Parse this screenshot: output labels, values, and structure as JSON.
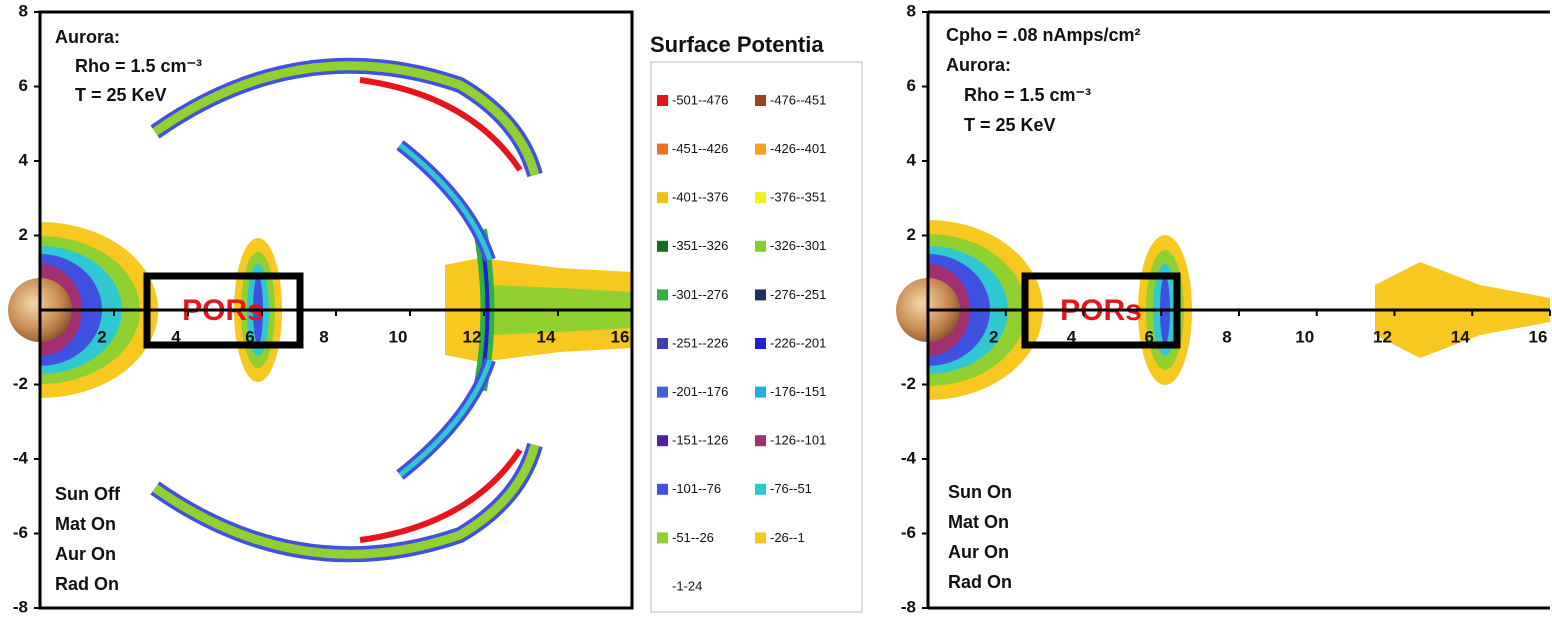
{
  "chart_data": [
    {
      "type": "contour",
      "xlim": [
        0,
        16
      ],
      "ylim": [
        -8,
        8
      ],
      "xticks": [
        2,
        4,
        6,
        8,
        10,
        12,
        14,
        16
      ],
      "yticks": [
        -8,
        -6,
        -4,
        -2,
        2,
        4,
        6,
        8
      ],
      "annotations": [
        "Aurora:",
        "Rho = 1.5 cm⁻³",
        "T = 25 KeV"
      ],
      "settings": [
        "Sun Off",
        "Mat On",
        "Aur On",
        "Rad On"
      ],
      "box_label": "PORs",
      "legend_title": "Surface Potentia",
      "legend": [
        {
          "name": "-501--476",
          "color": "#e8141c"
        },
        {
          "name": "-476--451",
          "color": "#a0401c"
        },
        {
          "name": "-451--426",
          "color": "#f07020"
        },
        {
          "name": "-426--401",
          "color": "#f8a020"
        },
        {
          "name": "-401--376",
          "color": "#f0c020"
        },
        {
          "name": "-376--351",
          "color": "#f0f020"
        },
        {
          "name": "-351--326",
          "color": "#1a6a20"
        },
        {
          "name": "-326--301",
          "color": "#80d030"
        },
        {
          "name": "-301--276",
          "color": "#30b040"
        },
        {
          "name": "-276--251",
          "color": "#203060"
        },
        {
          "name": "-251--226",
          "color": "#4040b0"
        },
        {
          "name": "-226--201",
          "color": "#2020d0"
        },
        {
          "name": "-201--176",
          "color": "#4060e0"
        },
        {
          "name": "-176--151",
          "color": "#20b0e0"
        },
        {
          "name": "-151--126",
          "color": "#5020a0"
        },
        {
          "name": "-126--101",
          "color": "#a03070"
        },
        {
          "name": "-101--76",
          "color": "#4050e0"
        },
        {
          "name": "-76--51",
          "color": "#30c8d0"
        },
        {
          "name": "-51--26",
          "color": "#90d030"
        },
        {
          "name": "-26--1",
          "color": "#f8c820"
        },
        {
          "name": "-1-24"
        }
      ]
    },
    {
      "type": "contour",
      "xlim": [
        0,
        16
      ],
      "ylim": [
        -8,
        8
      ],
      "xticks": [
        2,
        4,
        6,
        8,
        10,
        12,
        14,
        16
      ],
      "yticks": [
        -8,
        -6,
        -4,
        -2,
        2,
        4,
        6,
        8
      ],
      "annotations": [
        "Cpho = .08 nAmps/cm²",
        "Aurora:",
        "Rho = 1.5 cm⁻³",
        "T = 25 KeV"
      ],
      "settings": [
        "Sun On",
        "Mat On",
        "Aur On",
        "Rad On"
      ],
      "box_label": "PORs"
    }
  ]
}
